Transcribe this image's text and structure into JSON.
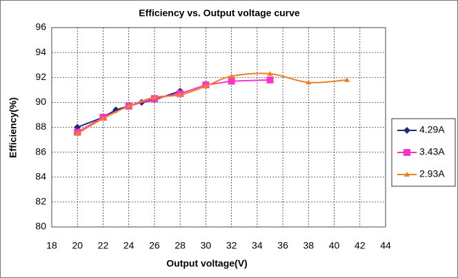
{
  "chart_data": {
    "type": "line",
    "title": "Efficiency vs. Output voltage curve",
    "xlabel": "Output voltage(V)",
    "ylabel": "Efficiency(%)",
    "xlim": [
      18,
      44
    ],
    "xticks": [
      18,
      20,
      22,
      24,
      26,
      28,
      30,
      32,
      34,
      36,
      38,
      40,
      42,
      44
    ],
    "ylim": [
      80,
      96
    ],
    "yticks": [
      80,
      82,
      84,
      86,
      88,
      90,
      92,
      94,
      96
    ],
    "grid": true,
    "legend": "right",
    "series": [
      {
        "name": "4.29A",
        "color": "#1f2a7a",
        "marker": "diamond",
        "smooth": false,
        "x": [
          20,
          22,
          23,
          24,
          25,
          26,
          28
        ],
        "values": [
          88.0,
          88.8,
          89.4,
          89.7,
          90.0,
          90.2,
          90.9
        ]
      },
      {
        "name": "3.43A",
        "color": "#ff33cc",
        "marker": "square",
        "smooth": false,
        "x": [
          20,
          22,
          24,
          26,
          28,
          30,
          32,
          35
        ],
        "values": [
          87.6,
          88.8,
          89.7,
          90.3,
          90.7,
          91.4,
          91.7,
          91.8
        ]
      },
      {
        "name": "2.93A",
        "color": "#f07f22",
        "marker": "triangle",
        "smooth": true,
        "x": [
          20,
          22,
          24,
          26,
          28,
          30,
          32,
          35,
          38,
          41
        ],
        "values": [
          87.5,
          88.7,
          89.7,
          90.4,
          90.6,
          91.3,
          92.1,
          92.3,
          91.6,
          91.8
        ]
      }
    ]
  }
}
